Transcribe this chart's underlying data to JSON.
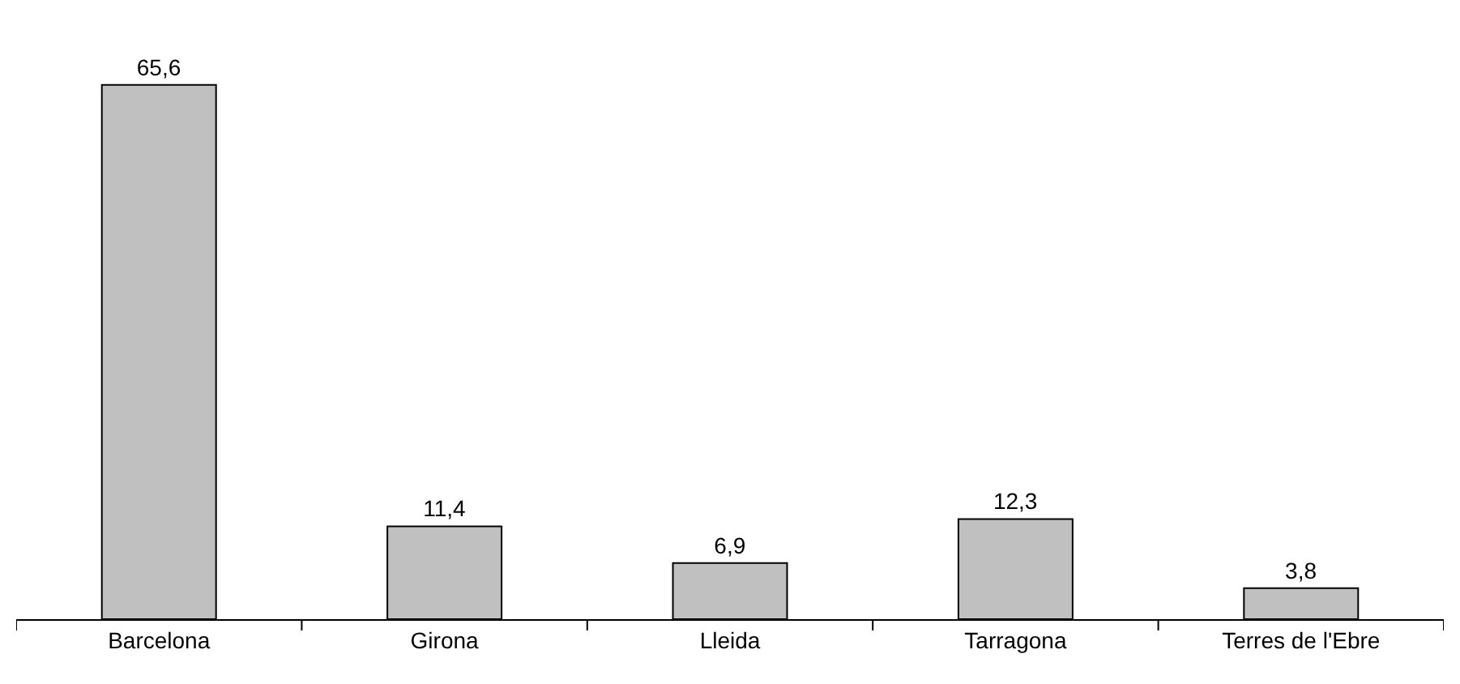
{
  "chart_data": {
    "type": "bar",
    "categories": [
      "Barcelona",
      "Girona",
      "Lleida",
      "Tarragona",
      "Terres de l'Ebre"
    ],
    "values": [
      65.6,
      11.4,
      6.9,
      12.3,
      3.8
    ],
    "value_labels": [
      "65,6",
      "11,4",
      "6,9",
      "12,3",
      "3,8"
    ],
    "color": "#c0c0c0",
    "tick_labels": "x",
    "legend": false
  }
}
